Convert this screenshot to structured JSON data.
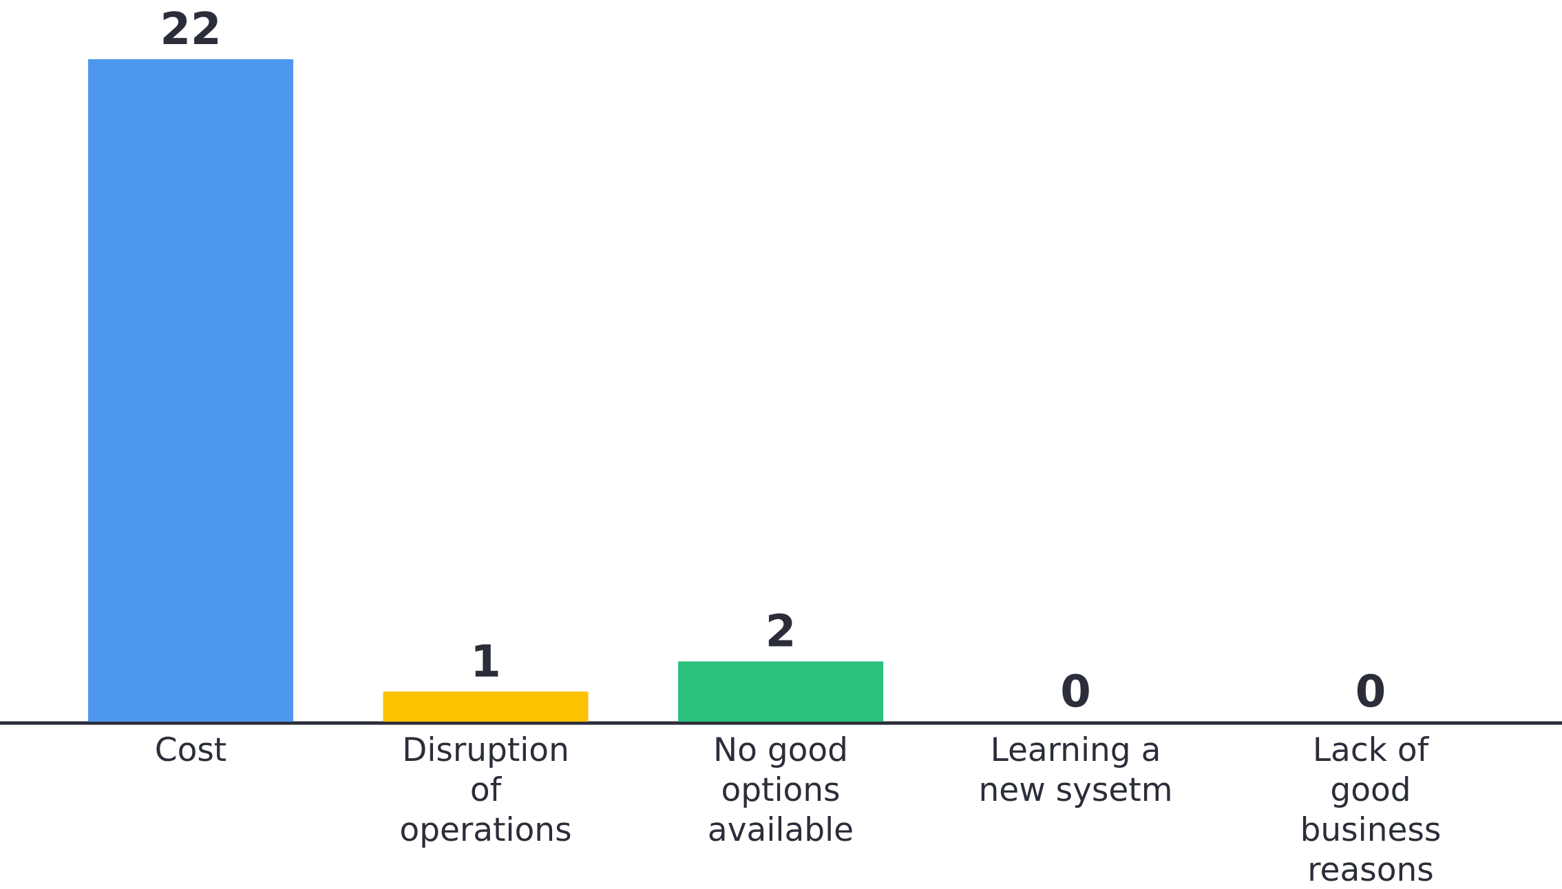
{
  "chart_data": {
    "type": "bar",
    "categories": [
      [
        "Cost"
      ],
      [
        "Disruption",
        "of",
        "operations"
      ],
      [
        "No good",
        "options",
        "available"
      ],
      [
        "Learning a",
        "new sysetm"
      ],
      [
        "Lack of",
        "good",
        "business",
        "reasons"
      ]
    ],
    "values": [
      22,
      1,
      2,
      0,
      0
    ],
    "value_labels": [
      "22",
      "1",
      "2",
      "0",
      "0"
    ],
    "colors": [
      "#4e97ee",
      "#fcc200",
      "#29c17b",
      "#9aa0ab",
      "#9aa0ab"
    ],
    "ylim": [
      0,
      22
    ],
    "grid": false,
    "legend": "none",
    "title": "",
    "xlabel": "",
    "ylabel": ""
  }
}
